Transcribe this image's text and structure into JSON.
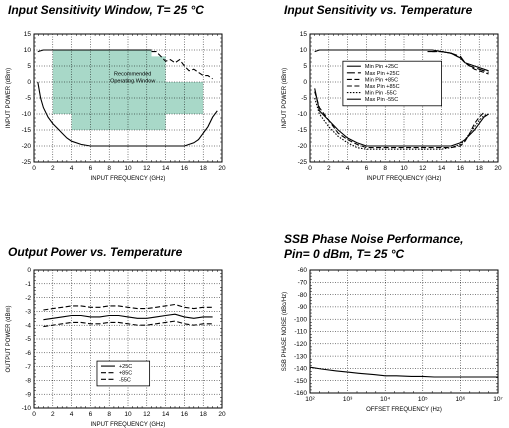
{
  "chart_data": [
    {
      "type": "line",
      "title": "Input Sensitivity Window, T= 25 °C",
      "xlabel": "INPUT FREQUENCY (GHz)",
      "ylabel": "INPUT POWER (dBm)",
      "xlim": [
        0,
        20
      ],
      "ylim": [
        -25,
        15
      ],
      "xticks": [
        "0",
        "2",
        "4",
        "6",
        "8",
        "10",
        "12",
        "14",
        "16",
        "18",
        "20"
      ],
      "yticks": [
        "15",
        "10",
        "5",
        "0",
        "-5",
        "-10",
        "-15",
        "-20",
        "-25"
      ],
      "grid": true,
      "window_label": "Recommended Operating Window",
      "window_color": "#a8d8c8",
      "window_region": [
        [
          2,
          10
        ],
        [
          12.5,
          10
        ],
        [
          12.5,
          8
        ],
        [
          14,
          8
        ],
        [
          14,
          0
        ],
        [
          18,
          0
        ],
        [
          18,
          -10
        ],
        [
          14,
          -10
        ],
        [
          14,
          -15
        ],
        [
          4,
          -15
        ],
        [
          4,
          -10
        ],
        [
          2,
          -10
        ]
      ],
      "series": [
        {
          "style": "solid",
          "x": [
            0.4,
            0.7,
            1,
            1.5,
            2,
            2.5,
            3,
            3.5,
            4,
            5,
            6,
            8,
            10,
            12,
            13,
            14,
            15,
            16,
            17,
            17.5,
            18,
            18.5,
            19,
            19.5
          ],
          "y": [
            0,
            -5,
            -8,
            -11,
            -13,
            -14.5,
            -16,
            -17.5,
            -18.5,
            -19.5,
            -20,
            -20,
            -20,
            -20,
            -20,
            -20,
            -20,
            -20,
            -19,
            -18,
            -16,
            -14,
            -11,
            -9
          ]
        },
        {
          "style": "solid",
          "x": [
            0.4,
            1,
            2,
            3,
            4,
            5,
            6,
            8,
            10,
            11,
            12,
            12.5
          ],
          "y": [
            9.5,
            10,
            10,
            10,
            10,
            10,
            10,
            10,
            10,
            10,
            10,
            10
          ]
        },
        {
          "style": "dashed",
          "x": [
            12.5,
            13,
            13.5,
            14,
            14.5,
            15,
            15.5,
            16,
            16.5,
            17,
            17.5,
            18,
            18.5,
            19
          ],
          "y": [
            9.5,
            9.5,
            8,
            6.5,
            7,
            6,
            7,
            5,
            3.5,
            4,
            3,
            2,
            2,
            1
          ]
        }
      ]
    },
    {
      "type": "line",
      "title": "Input Sensitivity vs. Temperature",
      "xlabel": "INPUT FREQUENCY (GHz)",
      "ylabel": "INPUT POWER (dBm)",
      "xlim": [
        0,
        20
      ],
      "ylim": [
        -25,
        15
      ],
      "xticks": [
        "0",
        "2",
        "4",
        "6",
        "8",
        "10",
        "12",
        "14",
        "16",
        "18",
        "20"
      ],
      "yticks": [
        "15",
        "10",
        "5",
        "0",
        "-5",
        "-10",
        "-15",
        "-20",
        "-25"
      ],
      "grid": true,
      "legend": [
        "Min Pin +25C",
        "Max Pin +25C",
        "Min Pin +85C",
        "Max Pin +85C",
        "Min Pin -55C",
        "Max Pin -55C"
      ],
      "series": [
        {
          "name": "Min Pin +25C",
          "style": "solid",
          "x": [
            0.5,
            1,
            2,
            3,
            4,
            5,
            6,
            8,
            10,
            12,
            14,
            15,
            16,
            16.5,
            17,
            17.5,
            18,
            18.5,
            19
          ],
          "y": [
            -2,
            -9,
            -12,
            -15,
            -17.5,
            -19,
            -20,
            -20,
            -20,
            -20,
            -20,
            -20,
            -19,
            -18,
            -16.5,
            -15,
            -13,
            -11,
            -10
          ]
        },
        {
          "name": "Max Pin +25C",
          "style": "longdash",
          "x": [
            12.5,
            14,
            15,
            16,
            16.5,
            17,
            17.5,
            18,
            18.5,
            19
          ],
          "y": [
            9.5,
            9.5,
            9,
            8,
            6,
            5,
            4.5,
            4,
            3.5,
            3
          ]
        },
        {
          "name": "Min Pin +85C",
          "style": "dashed",
          "x": [
            0.5,
            1,
            2,
            3,
            4,
            5,
            6,
            8,
            10,
            12,
            14,
            15,
            16,
            16.5,
            17,
            17.5,
            18,
            18.5
          ],
          "y": [
            -3,
            -8,
            -12,
            -16,
            -18,
            -19.5,
            -20.5,
            -20.5,
            -20.5,
            -20.5,
            -20.5,
            -20.5,
            -20,
            -18.5,
            -16,
            -13,
            -11,
            -9.5
          ]
        },
        {
          "name": "Max Pin +85C",
          "style": "dashed",
          "x": [
            13,
            14,
            15,
            16,
            16.5,
            17,
            17.5,
            18,
            18.5,
            19
          ],
          "y": [
            9.5,
            9.5,
            9,
            7.5,
            6,
            5,
            4,
            3.5,
            3,
            2.5
          ]
        },
        {
          "name": "Min Pin -55C",
          "style": "dotted",
          "x": [
            0.5,
            1,
            2,
            3,
            4,
            5,
            6,
            8,
            10,
            12,
            14,
            15,
            16,
            16.5,
            17,
            17.5,
            18,
            18.5,
            19
          ],
          "y": [
            -5,
            -10,
            -14,
            -17,
            -19,
            -20.5,
            -21,
            -21,
            -21,
            -21,
            -21,
            -20.5,
            -19.5,
            -18,
            -16,
            -14,
            -12,
            -10.5,
            -10
          ]
        },
        {
          "name": "Max Pin -55C",
          "style": "solid",
          "x": [
            0.5,
            1,
            2,
            3,
            4,
            6,
            8,
            10,
            12,
            13,
            14,
            15,
            16,
            16.5,
            17,
            17.5,
            18,
            18.5,
            19
          ],
          "y": [
            9.5,
            10,
            10,
            10,
            10,
            10,
            10,
            10,
            10,
            10,
            9.5,
            9,
            7.5,
            6,
            5.5,
            5,
            4.5,
            4,
            3.5
          ]
        }
      ]
    },
    {
      "type": "line",
      "title": "Output Power vs. Temperature",
      "xlabel": "INPUT FREQUENCY (GHz)",
      "ylabel": "OUTPUT POWER (dBm)",
      "xlim": [
        0,
        20
      ],
      "ylim": [
        -10,
        0
      ],
      "xticks": [
        "0",
        "2",
        "4",
        "6",
        "8",
        "10",
        "12",
        "14",
        "16",
        "18",
        "20"
      ],
      "yticks": [
        "0",
        "-1",
        "-2",
        "-3",
        "-4",
        "-5",
        "-6",
        "-7",
        "-8",
        "-9",
        "-10"
      ],
      "grid": true,
      "legend": [
        "+25C",
        "+85C",
        "-55C"
      ],
      "series": [
        {
          "name": "+25C",
          "style": "solid",
          "x": [
            1,
            2,
            3,
            4,
            5,
            6,
            7,
            8,
            9,
            10,
            11,
            12,
            13,
            14,
            15,
            16,
            17,
            18,
            19
          ],
          "y": [
            -3.6,
            -3.5,
            -3.4,
            -3.3,
            -3.3,
            -3.4,
            -3.4,
            -3.3,
            -3.3,
            -3.4,
            -3.5,
            -3.5,
            -3.4,
            -3.3,
            -3.2,
            -3.4,
            -3.5,
            -3.4,
            -3.4
          ]
        },
        {
          "name": "+85C",
          "style": "dashed",
          "x": [
            1,
            2,
            3,
            4,
            5,
            6,
            7,
            8,
            9,
            10,
            11,
            12,
            13,
            14,
            15,
            16,
            17,
            18,
            19
          ],
          "y": [
            -4.1,
            -4.0,
            -3.9,
            -3.8,
            -3.8,
            -3.9,
            -3.9,
            -3.8,
            -3.8,
            -3.9,
            -4.0,
            -4.0,
            -3.9,
            -3.8,
            -3.7,
            -3.9,
            -4.0,
            -3.9,
            -3.9
          ]
        },
        {
          "name": "-55C",
          "style": "dashed",
          "x": [
            1,
            2,
            3,
            4,
            5,
            6,
            7,
            8,
            9,
            10,
            11,
            12,
            13,
            14,
            15,
            16,
            17,
            18,
            19
          ],
          "y": [
            -2.9,
            -2.8,
            -2.7,
            -2.6,
            -2.6,
            -2.7,
            -2.7,
            -2.6,
            -2.6,
            -2.7,
            -2.8,
            -2.8,
            -2.7,
            -2.6,
            -2.5,
            -2.7,
            -2.8,
            -2.7,
            -2.7
          ]
        }
      ]
    },
    {
      "type": "line",
      "title": "SSB Phase Noise Performance, Pin= 0 dBm, T= 25 °C",
      "title_lines": [
        "SSB Phase Noise Performance,",
        "Pin= 0 dBm, T= 25 °C"
      ],
      "xlabel": "OFFSET FREQUENCY (Hz)",
      "ylabel": "SSB PHASE NOISE (dBc/Hz)",
      "xscale": "log",
      "xlim": [
        100,
        10000000
      ],
      "ylim": [
        -160,
        -60
      ],
      "xticks": [
        "10²",
        "10³",
        "10⁴",
        "10⁵",
        "10⁶",
        "10⁷"
      ],
      "yticks": [
        "-60",
        "-70",
        "-80",
        "-90",
        "-100",
        "-110",
        "-120",
        "-130",
        "-140",
        "-150",
        "-160"
      ],
      "grid": true,
      "series": [
        {
          "style": "solid",
          "x": [
            100,
            200,
            500,
            1000,
            2000,
            5000,
            10000,
            20000,
            50000,
            100000,
            200000,
            500000,
            1000000,
            2000000,
            5000000,
            10000000
          ],
          "y": [
            -139,
            -140.5,
            -142,
            -143,
            -144,
            -145,
            -146,
            -146,
            -146.5,
            -146.5,
            -147,
            -147,
            -147,
            -147,
            -147,
            -147
          ]
        }
      ]
    }
  ]
}
